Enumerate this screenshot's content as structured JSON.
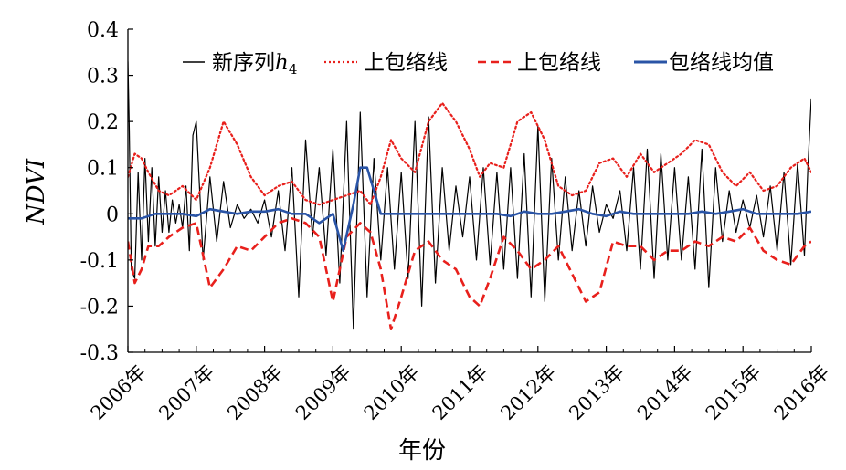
{
  "chart_data": {
    "type": "line",
    "xlabel": "年份",
    "ylabel": "NDVI",
    "xlim": [
      2006,
      2016
    ],
    "ylim": [
      -0.3,
      0.4
    ],
    "x_ticks": [
      2006,
      2007,
      2008,
      2009,
      2010,
      2011,
      2012,
      2013,
      2014,
      2015,
      2016
    ],
    "x_tick_labels": [
      "2006年",
      "2007年",
      "2008年",
      "2009年",
      "2010年",
      "2011年",
      "2012年",
      "2013年",
      "2014年",
      "2015年",
      "2016年"
    ],
    "y_ticks": [
      -0.3,
      -0.2,
      -0.1,
      0,
      0.1,
      0.2,
      0.3,
      0.4
    ],
    "y_tick_labels": [
      "-0.3",
      "-0.2",
      "-0.1",
      "0",
      "0.1",
      "0.2",
      "0.3",
      "0.4"
    ],
    "grid": false,
    "legend_position": "top",
    "series": [
      {
        "name": "新序列",
        "name_sub": "h",
        "name_subscript": "4",
        "color": "#000000",
        "style": "solid",
        "x": [
          2006.0,
          2006.02,
          2006.05,
          2006.1,
          2006.15,
          2006.2,
          2006.25,
          2006.3,
          2006.35,
          2006.4,
          2006.45,
          2006.5,
          2006.55,
          2006.6,
          2006.65,
          2006.7,
          2006.75,
          2006.8,
          2006.85,
          2006.9,
          2006.95,
          2007.0,
          2007.1,
          2007.2,
          2007.3,
          2007.4,
          2007.5,
          2007.6,
          2007.7,
          2007.8,
          2007.9,
          2008.0,
          2008.1,
          2008.2,
          2008.3,
          2008.4,
          2008.5,
          2008.6,
          2008.7,
          2008.8,
          2008.9,
          2009.0,
          2009.1,
          2009.2,
          2009.3,
          2009.4,
          2009.5,
          2009.6,
          2009.7,
          2009.8,
          2009.9,
          2010.0,
          2010.1,
          2010.2,
          2010.3,
          2010.4,
          2010.5,
          2010.6,
          2010.7,
          2010.8,
          2010.9,
          2011.0,
          2011.1,
          2011.2,
          2011.3,
          2011.4,
          2011.5,
          2011.6,
          2011.7,
          2011.8,
          2011.9,
          2012.0,
          2012.1,
          2012.2,
          2012.3,
          2012.4,
          2012.5,
          2012.6,
          2012.7,
          2012.8,
          2012.9,
          2013.0,
          2013.1,
          2013.2,
          2013.3,
          2013.4,
          2013.5,
          2013.6,
          2013.7,
          2013.8,
          2013.9,
          2014.0,
          2014.1,
          2014.2,
          2014.3,
          2014.4,
          2014.5,
          2014.6,
          2014.7,
          2014.8,
          2014.9,
          2015.0,
          2015.1,
          2015.2,
          2015.3,
          2015.4,
          2015.5,
          2015.6,
          2015.7,
          2015.8,
          2015.9,
          2015.95,
          2016.0
        ],
        "values": [
          0.33,
          0.18,
          -0.12,
          -0.14,
          0.09,
          -0.1,
          0.12,
          -0.06,
          0.1,
          -0.07,
          0.08,
          -0.04,
          0.05,
          -0.04,
          0.03,
          -0.02,
          0.02,
          -0.03,
          0.06,
          -0.08,
          0.17,
          0.2,
          -0.1,
          0.08,
          -0.06,
          0.07,
          -0.03,
          0.02,
          -0.01,
          0.01,
          -0.02,
          0.03,
          -0.05,
          0.05,
          -0.08,
          0.1,
          -0.18,
          0.16,
          -0.05,
          0.1,
          -0.09,
          0.14,
          -0.15,
          0.2,
          -0.25,
          0.22,
          -0.18,
          0.12,
          -0.1,
          0.1,
          -0.12,
          0.09,
          -0.14,
          0.2,
          -0.2,
          0.21,
          -0.15,
          0.1,
          -0.08,
          0.06,
          -0.05,
          0.08,
          -0.1,
          0.1,
          -0.11,
          0.09,
          -0.12,
          0.1,
          -0.14,
          0.13,
          -0.18,
          0.19,
          -0.19,
          0.12,
          -0.1,
          0.08,
          -0.08,
          0.05,
          -0.07,
          0.06,
          -0.04,
          0.02,
          -0.01,
          0.05,
          -0.08,
          0.1,
          -0.12,
          0.14,
          -0.14,
          0.13,
          -0.1,
          0.1,
          -0.1,
          0.08,
          -0.12,
          0.14,
          -0.16,
          0.1,
          -0.06,
          0.05,
          -0.04,
          0.03,
          -0.03,
          0.04,
          -0.05,
          0.06,
          -0.08,
          0.09,
          -0.11,
          0.11,
          -0.09,
          0.1,
          0.25
        ]
      },
      {
        "name": "上包络线",
        "color": "#e8201c",
        "style": "dotted",
        "x": [
          2006.0,
          2006.1,
          2006.2,
          2006.3,
          2006.45,
          2006.6,
          2006.8,
          2007.0,
          2007.2,
          2007.4,
          2007.6,
          2007.8,
          2008.0,
          2008.2,
          2008.4,
          2008.6,
          2008.8,
          2009.0,
          2009.2,
          2009.4,
          2009.55,
          2009.7,
          2009.85,
          2010.0,
          2010.2,
          2010.4,
          2010.6,
          2010.8,
          2011.0,
          2011.15,
          2011.3,
          2011.5,
          2011.7,
          2011.9,
          2012.1,
          2012.3,
          2012.5,
          2012.7,
          2012.9,
          2013.1,
          2013.3,
          2013.5,
          2013.7,
          2013.9,
          2014.1,
          2014.3,
          2014.5,
          2014.7,
          2014.9,
          2015.1,
          2015.3,
          2015.5,
          2015.7,
          2015.9,
          2016.0
        ],
        "values": [
          0.08,
          0.13,
          0.12,
          0.09,
          0.05,
          0.04,
          0.06,
          0.03,
          0.1,
          0.2,
          0.15,
          0.08,
          0.04,
          0.06,
          0.07,
          0.03,
          0.02,
          0.03,
          0.04,
          0.05,
          0.02,
          0.08,
          0.16,
          0.12,
          0.09,
          0.2,
          0.24,
          0.2,
          0.14,
          0.08,
          0.11,
          0.1,
          0.2,
          0.22,
          0.16,
          0.06,
          0.04,
          0.05,
          0.11,
          0.12,
          0.08,
          0.13,
          0.09,
          0.11,
          0.13,
          0.16,
          0.15,
          0.09,
          0.06,
          0.09,
          0.05,
          0.06,
          0.1,
          0.12,
          0.09
        ]
      },
      {
        "name": "上包络线",
        "color": "#e8201c",
        "style": "dashed",
        "x": [
          2006.0,
          2006.1,
          2006.2,
          2006.3,
          2006.45,
          2006.6,
          2006.8,
          2007.0,
          2007.2,
          2007.4,
          2007.6,
          2007.8,
          2008.0,
          2008.2,
          2008.4,
          2008.6,
          2008.8,
          2009.0,
          2009.2,
          2009.4,
          2009.55,
          2009.7,
          2009.85,
          2010.0,
          2010.2,
          2010.4,
          2010.6,
          2010.8,
          2011.0,
          2011.15,
          2011.3,
          2011.5,
          2011.7,
          2011.9,
          2012.1,
          2012.3,
          2012.5,
          2012.7,
          2012.9,
          2013.1,
          2013.3,
          2013.5,
          2013.7,
          2013.9,
          2014.1,
          2014.3,
          2014.5,
          2014.7,
          2014.9,
          2015.1,
          2015.3,
          2015.5,
          2015.7,
          2015.9,
          2016.0
        ],
        "values": [
          -0.06,
          -0.15,
          -0.12,
          -0.07,
          -0.07,
          -0.05,
          -0.03,
          -0.02,
          -0.16,
          -0.12,
          -0.07,
          -0.08,
          -0.05,
          -0.02,
          -0.01,
          -0.02,
          -0.05,
          -0.19,
          -0.05,
          -0.02,
          -0.04,
          -0.12,
          -0.25,
          -0.18,
          -0.08,
          -0.06,
          -0.1,
          -0.12,
          -0.18,
          -0.2,
          -0.14,
          -0.05,
          -0.08,
          -0.12,
          -0.1,
          -0.07,
          -0.13,
          -0.19,
          -0.17,
          -0.06,
          -0.07,
          -0.07,
          -0.1,
          -0.08,
          -0.08,
          -0.06,
          -0.07,
          -0.05,
          -0.06,
          -0.03,
          -0.08,
          -0.1,
          -0.11,
          -0.07,
          -0.06
        ]
      },
      {
        "name": "包络线均值",
        "color": "#2a54a6",
        "style": "solid",
        "x": [
          2006.0,
          2006.2,
          2006.4,
          2006.6,
          2006.8,
          2007.0,
          2007.2,
          2007.4,
          2007.6,
          2007.8,
          2008.0,
          2008.2,
          2008.4,
          2008.6,
          2008.8,
          2009.0,
          2009.15,
          2009.3,
          2009.4,
          2009.5,
          2009.6,
          2009.7,
          2009.8,
          2010.0,
          2010.2,
          2010.4,
          2010.6,
          2010.8,
          2011.0,
          2011.2,
          2011.4,
          2011.6,
          2011.8,
          2012.0,
          2012.2,
          2012.4,
          2012.6,
          2012.8,
          2013.0,
          2013.2,
          2013.4,
          2013.6,
          2013.8,
          2014.0,
          2014.2,
          2014.4,
          2014.6,
          2014.8,
          2015.0,
          2015.2,
          2015.4,
          2015.6,
          2015.8,
          2016.0
        ],
        "values": [
          -0.01,
          -0.01,
          0.0,
          0.0,
          0.0,
          -0.005,
          0.01,
          0.005,
          0.0,
          0.005,
          0.005,
          0.01,
          0.0,
          0.0,
          -0.02,
          0.0,
          -0.08,
          0.02,
          0.1,
          0.1,
          0.05,
          0.0,
          0.0,
          0.0,
          0.0,
          0.0,
          0.0,
          0.0,
          0.0,
          0.0,
          0.0,
          -0.005,
          0.005,
          0.0,
          0.0,
          0.005,
          0.01,
          0.0,
          -0.005,
          0.005,
          0.0,
          0.0,
          0.0,
          0.0,
          0.0,
          0.005,
          0.0,
          0.005,
          0.01,
          0.0,
          0.0,
          0.0,
          0.0,
          0.005
        ]
      }
    ]
  }
}
